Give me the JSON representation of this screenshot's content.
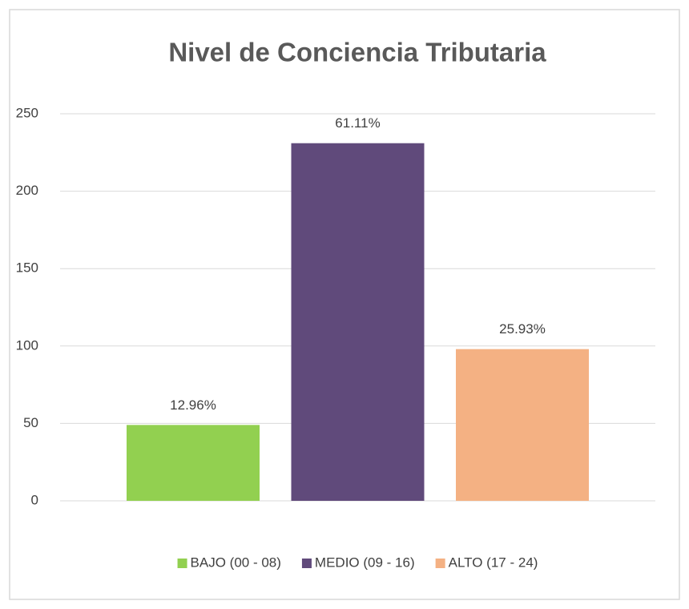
{
  "chart_data": {
    "type": "bar",
    "title": "Nivel de Conciencia Tributaria",
    "series": [
      {
        "name": "BAJO (00 - 08)",
        "color": "#92d050",
        "values": [
          49
        ],
        "data_labels": [
          "12.96%"
        ]
      },
      {
        "name": "MEDIO (09 - 16)",
        "color": "#604a7b",
        "values": [
          231
        ],
        "data_labels": [
          "61.11%"
        ]
      },
      {
        "name": "ALTO (17 - 24)",
        "color": "#f4b183",
        "values": [
          98
        ],
        "data_labels": [
          "25.93%"
        ]
      }
    ],
    "ylim": [
      0,
      250
    ],
    "yticks": [
      0,
      50,
      100,
      150,
      200,
      250
    ],
    "grid": true,
    "legend": "bottom"
  }
}
